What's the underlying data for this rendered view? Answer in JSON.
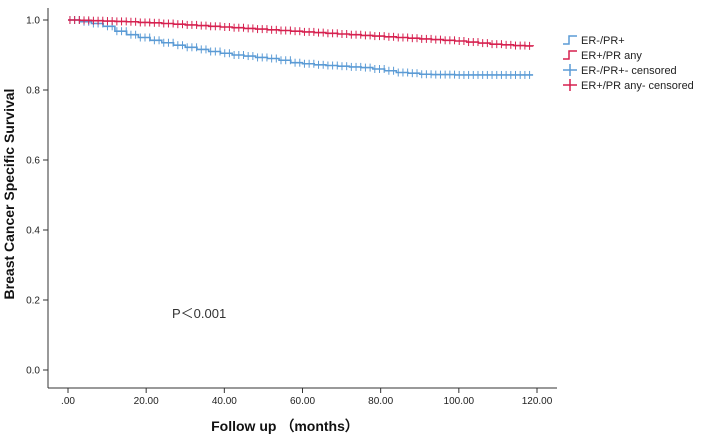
{
  "chart_data": {
    "type": "line",
    "subtype": "kaplan-meier",
    "title": "",
    "xlabel": "Follow up （months）",
    "ylabel": "Breast Cancer Specific Survival",
    "xlim": [
      0,
      120
    ],
    "ylim": [
      0,
      1.0
    ],
    "xticks": [
      ".00",
      "20.00",
      "40.00",
      "60.00",
      "80.00",
      "100.00",
      "120.00"
    ],
    "yticks": [
      "0.0",
      "0.2",
      "0.4",
      "0.6",
      "0.8",
      "1.0"
    ],
    "grid": false,
    "legend_position": "top-right",
    "legend": [
      "ER-/PR+",
      "ER+/PR any",
      "ER-/PR+- censored",
      "ER+/PR any- censored"
    ],
    "annotation": "P＜0.001",
    "series": [
      {
        "name": "ER-/PR+",
        "color": "#5b9bd5",
        "x": [
          0,
          3,
          6,
          9,
          12,
          15,
          18,
          21,
          24,
          27,
          30,
          33,
          36,
          39,
          42,
          45,
          48,
          51,
          54,
          57,
          60,
          63,
          66,
          69,
          72,
          75,
          78,
          81,
          84,
          87,
          90,
          93,
          96,
          99,
          102,
          105,
          108,
          111,
          114,
          117,
          119
        ],
        "y": [
          1.0,
          0.995,
          0.99,
          0.982,
          0.968,
          0.958,
          0.95,
          0.942,
          0.935,
          0.928,
          0.922,
          0.916,
          0.91,
          0.905,
          0.9,
          0.897,
          0.893,
          0.89,
          0.885,
          0.878,
          0.875,
          0.872,
          0.87,
          0.868,
          0.866,
          0.864,
          0.86,
          0.855,
          0.85,
          0.848,
          0.845,
          0.844,
          0.844,
          0.843,
          0.843,
          0.843,
          0.843,
          0.843,
          0.843,
          0.843,
          0.843
        ]
      },
      {
        "name": "ER+/PR any",
        "color": "#d6204f",
        "x": [
          0,
          3,
          6,
          9,
          12,
          15,
          18,
          21,
          24,
          27,
          30,
          33,
          36,
          39,
          42,
          45,
          48,
          51,
          54,
          57,
          60,
          63,
          66,
          69,
          72,
          75,
          78,
          81,
          84,
          87,
          90,
          93,
          96,
          99,
          102,
          105,
          108,
          111,
          114,
          117,
          119
        ],
        "y": [
          1.0,
          0.999,
          0.998,
          0.997,
          0.996,
          0.995,
          0.993,
          0.992,
          0.99,
          0.988,
          0.986,
          0.984,
          0.982,
          0.98,
          0.978,
          0.976,
          0.974,
          0.972,
          0.97,
          0.968,
          0.966,
          0.964,
          0.962,
          0.96,
          0.958,
          0.956,
          0.954,
          0.952,
          0.95,
          0.948,
          0.946,
          0.944,
          0.942,
          0.94,
          0.937,
          0.934,
          0.931,
          0.929,
          0.927,
          0.926,
          0.925
        ]
      }
    ]
  }
}
